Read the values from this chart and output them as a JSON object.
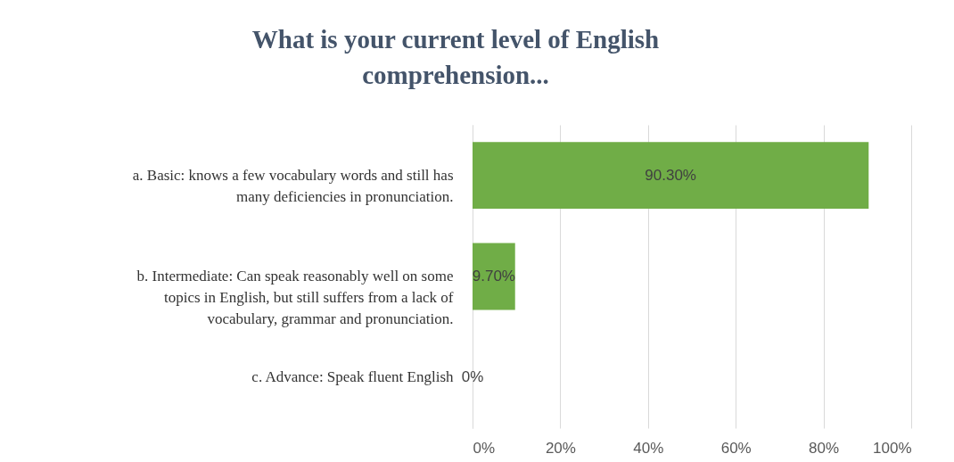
{
  "chart_data": {
    "type": "bar",
    "orientation": "horizontal",
    "title": "What is your current level of English comprehension...",
    "categories": [
      "a. Basic: knows a few vocabulary words and still has many deficiencies in pronunciation.",
      "b. Intermediate: Can speak reasonably well on some topics in English, but still suffers from a lack of vocabulary, grammar and pronunciation.",
      "c. Advance: Speak fluent English"
    ],
    "values": [
      90.3,
      9.7,
      0
    ],
    "value_labels": [
      "90.30%",
      "9.70%",
      "0%"
    ],
    "color": "#70ad47",
    "xlim": [
      0,
      100
    ],
    "xticks": [
      {
        "value": 0,
        "label": "0%"
      },
      {
        "value": 20,
        "label": "20%"
      },
      {
        "value": 40,
        "label": "40%"
      },
      {
        "value": 60,
        "label": "60%"
      },
      {
        "value": 80,
        "label": "80%"
      },
      {
        "value": 100,
        "label": "100%"
      }
    ],
    "grid": "x"
  }
}
